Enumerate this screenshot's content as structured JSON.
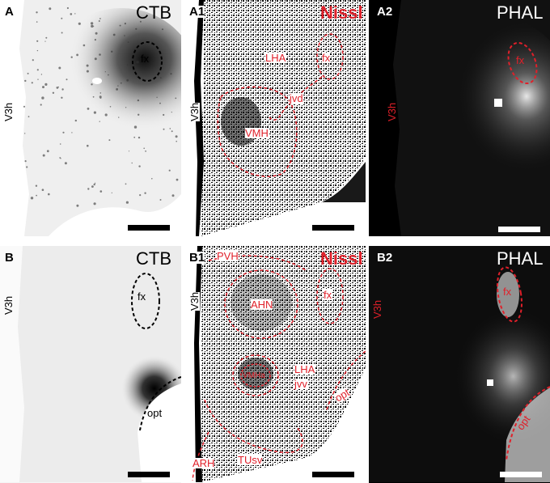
{
  "panels": [
    {
      "id": "A",
      "label": "A",
      "stain": "CTB",
      "ventricle": "V3h",
      "regions": [
        "fx"
      ],
      "theme": "ctb"
    },
    {
      "id": "A1",
      "label": "A1",
      "stain": "Nissl",
      "ventricle": "V3h",
      "regions": [
        "LHA",
        "fx",
        "jvd",
        "VMH"
      ],
      "theme": "nissl"
    },
    {
      "id": "A2",
      "label": "A2",
      "stain": "PHAL",
      "ventricle": "V3h",
      "regions": [
        "fx"
      ],
      "theme": "phal"
    },
    {
      "id": "B",
      "label": "B",
      "stain": "CTB",
      "ventricle": "V3h",
      "regions": [
        "fx",
        "opt"
      ],
      "theme": "ctb"
    },
    {
      "id": "B1",
      "label": "B1",
      "stain": "Nissl",
      "ventricle": "V3h",
      "regions": [
        "PVH",
        "AHN",
        "fx",
        "VMHa",
        "LHA",
        "jvv",
        "opt",
        "ARH",
        "TUsv"
      ],
      "theme": "nissl"
    },
    {
      "id": "B2",
      "label": "B2",
      "stain": "PHAL",
      "ventricle": "V3h",
      "regions": [
        "fx",
        "opt"
      ],
      "theme": "phal"
    }
  ],
  "colors": {
    "annotation_red": "#e0202a",
    "black": "#000000",
    "white": "#ffffff"
  }
}
